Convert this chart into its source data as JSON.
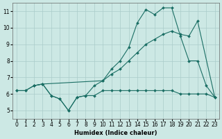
{
  "xlabel": "Humidex (Indice chaleur)",
  "bg_color": "#cce8e4",
  "grid_color": "#aaccca",
  "line_color": "#1a6e64",
  "xlim": [
    -0.5,
    23.5
  ],
  "ylim": [
    4.5,
    11.5
  ],
  "xticks": [
    0,
    1,
    2,
    3,
    4,
    5,
    6,
    7,
    8,
    9,
    10,
    11,
    12,
    13,
    14,
    15,
    16,
    17,
    18,
    19,
    20,
    21,
    22,
    23
  ],
  "yticks": [
    5,
    6,
    7,
    8,
    9,
    10,
    11
  ],
  "line1_x": [
    0,
    1,
    2,
    3,
    4,
    5,
    6,
    7,
    8,
    9,
    10,
    11,
    12,
    13,
    14,
    15,
    16,
    17,
    18,
    19,
    20,
    21,
    22,
    23
  ],
  "line1_y": [
    6.2,
    6.2,
    6.5,
    6.6,
    5.9,
    5.7,
    5.0,
    5.8,
    5.9,
    5.9,
    6.2,
    6.2,
    6.2,
    6.2,
    6.2,
    6.2,
    6.2,
    6.2,
    6.2,
    6.0,
    6.0,
    6.0,
    6.0,
    5.8
  ],
  "line2_x": [
    2,
    3,
    10,
    11,
    12,
    13,
    14,
    15,
    16,
    17,
    18,
    19,
    20,
    21,
    23
  ],
  "line2_y": [
    6.5,
    6.6,
    6.8,
    7.2,
    7.5,
    8.0,
    8.5,
    9.0,
    9.3,
    9.6,
    9.8,
    9.6,
    9.5,
    10.4,
    5.8
  ],
  "line3_x": [
    0,
    1,
    2,
    3,
    4,
    5,
    6,
    7,
    8,
    9,
    10,
    11,
    12,
    13,
    14,
    15,
    16,
    17,
    18,
    19,
    20,
    21,
    22,
    23
  ],
  "line3_y": [
    6.2,
    6.2,
    6.5,
    6.6,
    5.9,
    5.7,
    5.0,
    5.8,
    5.9,
    6.5,
    6.8,
    7.5,
    8.0,
    8.8,
    10.3,
    11.1,
    10.8,
    11.2,
    11.2,
    9.5,
    8.0,
    8.0,
    6.5,
    5.8
  ]
}
